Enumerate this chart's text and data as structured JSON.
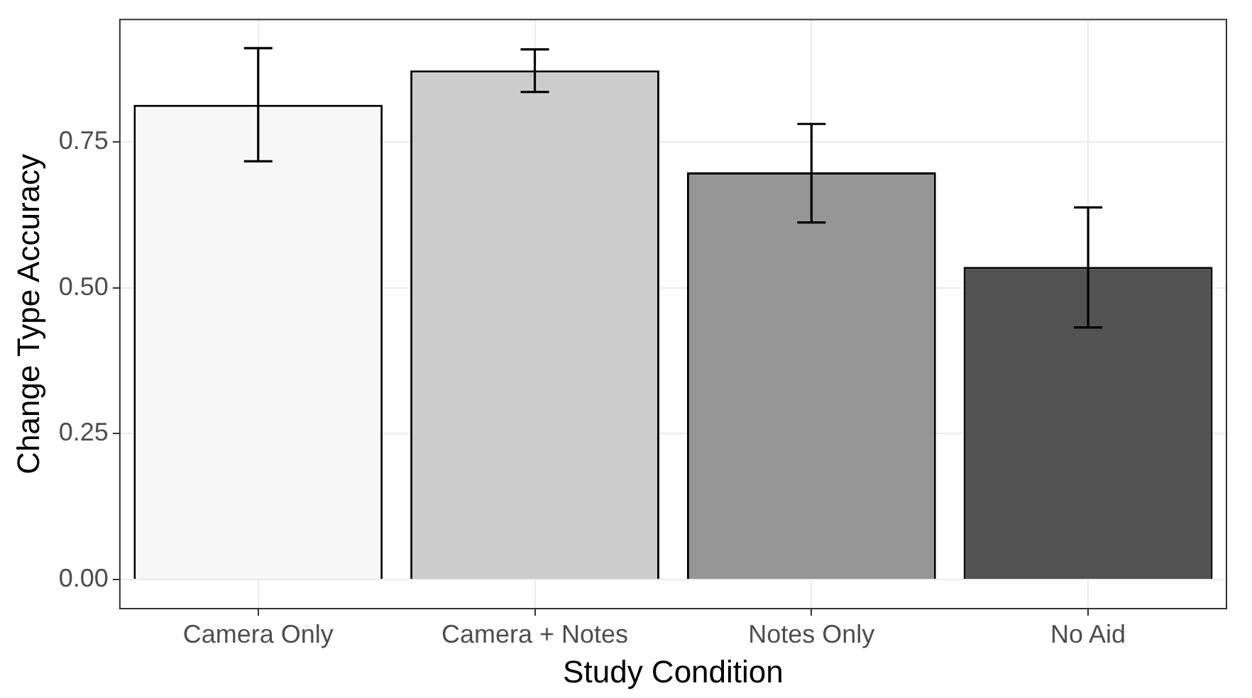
{
  "chart_data": {
    "type": "bar",
    "xlabel": "Study Condition",
    "ylabel": "Change Type Accuracy",
    "categories": [
      "Camera Only",
      "Camera + Notes",
      "Notes Only",
      "No Aid"
    ],
    "values": [
      0.814,
      0.873,
      0.698,
      0.536
    ],
    "colors": [
      "#f7f7f7",
      "#cccccc",
      "#969696",
      "#525252"
    ],
    "errors": [
      [
        0.717,
        0.911
      ],
      [
        0.836,
        0.909
      ],
      [
        0.612,
        0.781
      ],
      [
        0.432,
        0.638
      ]
    ],
    "ylim": [
      -0.05,
      0.96
    ],
    "yticks": [
      {
        "value": 0,
        "label": "0.00"
      },
      {
        "value": 0.25,
        "label": "0.25"
      },
      {
        "value": 0.5,
        "label": "0.50"
      },
      {
        "value": 0.75,
        "label": "0.75"
      }
    ],
    "grid": true,
    "legend": false
  }
}
